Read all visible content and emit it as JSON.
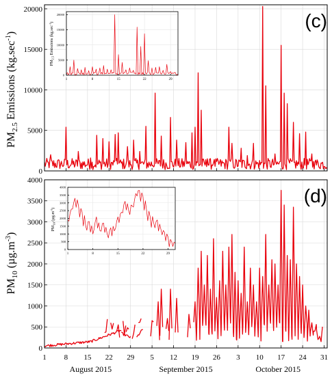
{
  "colors": {
    "series": "#e8000b",
    "axis": "#000000",
    "grid": "#d8d8d8",
    "inset_grid": "#e6e6e6",
    "background": "#ffffff"
  },
  "chart_data": [
    {
      "type": "line",
      "panel": "(c)",
      "ylabel_main": "PM",
      "ylabel_sub": "2.5",
      "ylabel_rest": " Emissions (kg.sec",
      "ylabel_sup": "-1",
      "ylabel_end": ")",
      "ylim": [
        0,
        20500
      ],
      "yticks": [
        0,
        5000,
        10000,
        15000,
        20000
      ],
      "ytick_labels": [
        "0",
        "5000",
        "10000",
        "15000",
        "20000"
      ],
      "xlim": [
        1,
        93
      ],
      "grid": true,
      "peaks": [
        [
          3,
          2000
        ],
        [
          8,
          5400
        ],
        [
          12,
          2400
        ],
        [
          16,
          1600
        ],
        [
          18,
          4400
        ],
        [
          20,
          4000
        ],
        [
          22,
          3600
        ],
        [
          24,
          4500
        ],
        [
          25,
          4700
        ],
        [
          28,
          3000
        ],
        [
          30,
          3800
        ],
        [
          32,
          2400
        ],
        [
          34,
          5500
        ],
        [
          37,
          9600
        ],
        [
          39,
          4300
        ],
        [
          42,
          6600
        ],
        [
          44,
          3800
        ],
        [
          47,
          3500
        ],
        [
          49,
          4700
        ],
        [
          50,
          5400
        ],
        [
          51,
          12100
        ],
        [
          52,
          7500
        ],
        [
          54,
          1500
        ],
        [
          56,
          1000
        ],
        [
          61,
          5400
        ],
        [
          62,
          3400
        ],
        [
          65,
          2800
        ],
        [
          67,
          1900
        ],
        [
          69,
          3400
        ],
        [
          72,
          20300
        ],
        [
          73,
          10500
        ],
        [
          76,
          2100
        ],
        [
          78,
          15500
        ],
        [
          79,
          9600
        ],
        [
          80,
          8300
        ],
        [
          82,
          6000
        ],
        [
          84,
          4600
        ],
        [
          86,
          4800
        ],
        [
          88,
          2100
        ],
        [
          89,
          1100
        ]
      ],
      "inset": {
        "ylabel_main": "PM",
        "ylabel_sub": "2.5",
        "ylabel_rest": " Emissions (kg.sec",
        "ylabel_sup": "-1",
        "ylabel_end": ")",
        "ylim": [
          0,
          21000
        ],
        "yticks": [
          0,
          5000,
          10000,
          15000,
          20000
        ],
        "ytick_labels": [
          "0",
          "5000",
          "10000",
          "15000",
          "20000"
        ],
        "xlim": [
          1,
          31
        ],
        "xticks": [
          1,
          8,
          15,
          22,
          29
        ],
        "xtick_labels": [
          "1",
          "8",
          "15",
          "22",
          "29"
        ],
        "peaks": [
          [
            2,
            2800
          ],
          [
            3,
            5000
          ],
          [
            4,
            2200
          ],
          [
            5,
            1800
          ],
          [
            6,
            2600
          ],
          [
            7,
            1500
          ],
          [
            8,
            2800
          ],
          [
            9,
            2000
          ],
          [
            10,
            2400
          ],
          [
            11,
            3200
          ],
          [
            12,
            2000
          ],
          [
            13,
            1800
          ],
          [
            14,
            20000
          ],
          [
            15,
            6800
          ],
          [
            16,
            4200
          ],
          [
            17,
            1800
          ],
          [
            18,
            2400
          ],
          [
            19,
            1600
          ],
          [
            20,
            15900
          ],
          [
            21,
            9500
          ],
          [
            22,
            13700
          ],
          [
            23,
            4800
          ],
          [
            24,
            2400
          ],
          [
            25,
            2600
          ],
          [
            26,
            2800
          ],
          [
            27,
            1600
          ],
          [
            28,
            3600
          ],
          [
            29,
            1200
          ],
          [
            30,
            800
          ]
        ]
      }
    },
    {
      "type": "line",
      "panel": "(d)",
      "ylabel_main": "PM",
      "ylabel_sub": "10",
      "ylabel_rest": " (µg.m",
      "ylabel_sup": "-3",
      "ylabel_end": ")",
      "ylim": [
        0,
        4000
      ],
      "yticks": [
        0,
        500,
        1000,
        1500,
        2000,
        2500,
        3000,
        3500,
        4000
      ],
      "ytick_labels": [
        "0",
        "500",
        "1000",
        "1500",
        "2000",
        "2500",
        "3000",
        "3500",
        "4000"
      ],
      "xlim": [
        1,
        93
      ],
      "xticks": [
        1,
        8,
        15,
        22,
        29,
        36,
        43,
        50,
        57,
        64,
        71,
        78,
        85,
        92
      ],
      "xtick_labels": [
        "1",
        "8",
        "15",
        "22",
        "29",
        "5",
        "12",
        "19",
        "26",
        "3",
        "10",
        "17",
        "24",
        "31"
      ],
      "month_labels": [
        "August 2015",
        "September 2015",
        "October 2015"
      ],
      "month_centers": [
        16,
        47,
        77
      ],
      "grid": true,
      "segments": [
        {
          "x0": 1,
          "x1": 16,
          "v0": 50,
          "v1": 150
        },
        {
          "x0": 16,
          "x1": 26,
          "v0": 150,
          "v1": 420
        },
        {
          "x0": 26,
          "x1": 29,
          "v0": 350,
          "v1": 250
        },
        {
          "x0": 31,
          "x1": 33,
          "v0": 250,
          "v1": 450
        }
      ],
      "spikes": [
        [
          21,
          380
        ],
        [
          23,
          450
        ],
        [
          25,
          550
        ],
        [
          27,
          320
        ],
        [
          28,
          480
        ],
        [
          30,
          340
        ],
        [
          32,
          610
        ],
        [
          36,
          650
        ],
        [
          38,
          1100
        ],
        [
          39,
          1400
        ],
        [
          41,
          700
        ],
        [
          42,
          1400
        ],
        [
          44,
          1180
        ],
        [
          48,
          800
        ],
        [
          50,
          1100
        ],
        [
          51,
          1900
        ],
        [
          52,
          2300
        ],
        [
          53,
          1500
        ],
        [
          54,
          2200
        ],
        [
          55,
          1400
        ],
        [
          56,
          2600
        ],
        [
          57,
          1200
        ],
        [
          58,
          1600
        ],
        [
          59,
          2300
        ],
        [
          60,
          1500
        ],
        [
          61,
          2400
        ],
        [
          62,
          2700
        ],
        [
          63,
          1800
        ],
        [
          64,
          1600
        ],
        [
          65,
          1300
        ],
        [
          66,
          2400
        ],
        [
          67,
          1100
        ],
        [
          68,
          1900
        ],
        [
          69,
          1500
        ],
        [
          70,
          1100
        ],
        [
          71,
          1900
        ],
        [
          72,
          1700
        ],
        [
          73,
          2700
        ],
        [
          74,
          1500
        ],
        [
          75,
          2100
        ],
        [
          76,
          2000
        ],
        [
          77,
          1500
        ],
        [
          78,
          3750
        ],
        [
          79,
          3400
        ],
        [
          80,
          2200
        ],
        [
          81,
          2100
        ],
        [
          82,
          3350
        ],
        [
          83,
          2000
        ],
        [
          84,
          1700
        ],
        [
          85,
          1500
        ],
        [
          86,
          1000
        ],
        [
          87,
          900
        ],
        [
          88,
          600
        ],
        [
          89,
          400
        ],
        [
          90,
          200
        ],
        [
          91,
          150
        ]
      ],
      "inset": {
        "ylabel_main": "PM",
        "ylabel_sub": "10",
        "ylabel_rest": " (µg.m",
        "ylabel_sup": "-3",
        "ylabel_end": ")",
        "ylim": [
          0,
          4000
        ],
        "yticks": [
          0,
          500,
          1000,
          1500,
          2000,
          2500,
          3000,
          3500,
          4000
        ],
        "ytick_labels": [
          "0",
          "500",
          "1000",
          "1500",
          "2000",
          "2500",
          "3000",
          "3500",
          "4000"
        ],
        "xlim": [
          1,
          31
        ],
        "xticks": [
          1,
          8,
          15,
          22,
          29
        ],
        "xtick_labels": [
          "1",
          "8",
          "15",
          "22",
          "29"
        ],
        "values": [
          1900,
          2600,
          3300,
          2800,
          2400,
          1500,
          1800,
          1000,
          2100,
          1200,
          1700,
          1000,
          1400,
          1200,
          2100,
          2400,
          3100,
          2500,
          2800,
          3600,
          3800,
          3400,
          2500,
          2100,
          1700,
          1900,
          1300,
          1100,
          800,
          500,
          400
        ]
      }
    }
  ]
}
